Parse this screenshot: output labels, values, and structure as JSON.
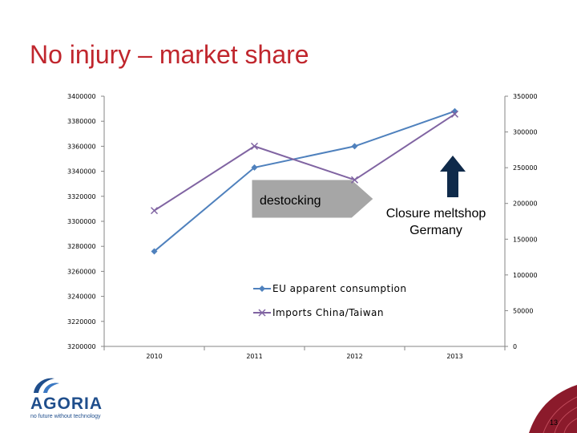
{
  "slide": {
    "title": "No injury – market share",
    "page_number": "13"
  },
  "logo": {
    "name": "AGORIA",
    "tagline": "no future without technology",
    "color": "#1f4e8c"
  },
  "colors": {
    "title": "#c0262d",
    "series_eu": "#4f81bd",
    "series_imports": "#8064a2",
    "arrow_fill": "#a6a6a6",
    "arrow_up": "#0f2a4a"
  },
  "chart_data": {
    "type": "line",
    "categories": [
      "2010",
      "2011",
      "2012",
      "2013"
    ],
    "left_axis": {
      "ylim": [
        3200000,
        3400000
      ],
      "ticks": [
        "3400000",
        "3380000",
        "3360000",
        "3340000",
        "3320000",
        "3300000",
        "3280000",
        "3260000",
        "3240000",
        "3220000",
        "3200000"
      ]
    },
    "right_axis": {
      "ylim": [
        0,
        350000
      ],
      "ticks": [
        "350000",
        "300000",
        "250000",
        "200000",
        "150000",
        "100000",
        "50000",
        "0"
      ]
    },
    "series": [
      {
        "name": "EU apparent consumption",
        "axis": "left",
        "marker": "diamond",
        "color": "#4f81bd",
        "values": [
          3276000,
          3343000,
          3360000,
          3388000
        ]
      },
      {
        "name": "Imports China/Taiwan",
        "axis": "right",
        "marker": "x",
        "color": "#8064a2",
        "values": [
          190000,
          280000,
          233000,
          325000
        ]
      }
    ],
    "annotations": {
      "destocking": "destocking",
      "closure_line1": "Closure meltshop",
      "closure_line2": "Germany"
    },
    "grid": false,
    "legend_position": "bottom-center"
  }
}
